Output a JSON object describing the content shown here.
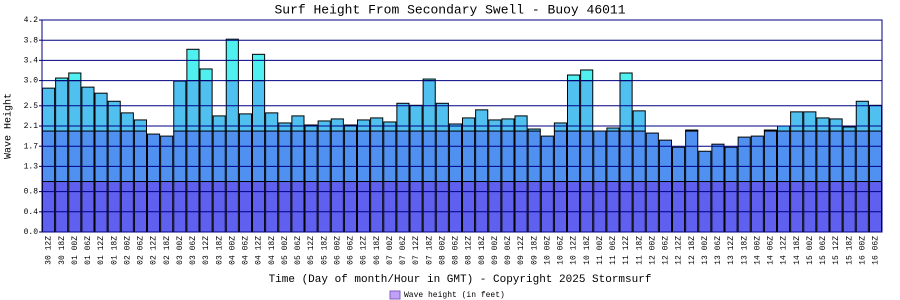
{
  "chart_data": {
    "type": "bar",
    "title": "Surf Height From Secondary Swell - Buoy 46011",
    "y_label": "Wave Height",
    "x_label": "Time (Day of month/Hour in GMT) - Copyright 2025 Stormsurf",
    "categories": [
      "30 12Z",
      "30 18Z",
      "01 00Z",
      "01 06Z",
      "01 12Z",
      "01 18Z",
      "02 00Z",
      "02 06Z",
      "02 12Z",
      "02 18Z",
      "03 00Z",
      "03 06Z",
      "03 12Z",
      "03 18Z",
      "04 00Z",
      "04 06Z",
      "04 12Z",
      "04 18Z",
      "05 00Z",
      "05 06Z",
      "05 12Z",
      "05 18Z",
      "06 00Z",
      "06 06Z",
      "06 12Z",
      "06 18Z",
      "07 00Z",
      "07 06Z",
      "07 12Z",
      "07 18Z",
      "08 00Z",
      "08 06Z",
      "08 12Z",
      "08 18Z",
      "09 00Z",
      "09 06Z",
      "09 12Z",
      "09 18Z",
      "10 00Z",
      "10 06Z",
      "10 12Z",
      "10 18Z",
      "11 00Z",
      "11 06Z",
      "11 12Z",
      "11 18Z",
      "12 00Z",
      "12 06Z",
      "12 12Z",
      "12 18Z",
      "13 00Z",
      "13 06Z",
      "13 12Z",
      "13 18Z",
      "14 00Z",
      "14 06Z",
      "14 12Z",
      "14 18Z",
      "15 00Z",
      "15 06Z",
      "15 12Z",
      "15 18Z",
      "16 00Z",
      "16 06Z"
    ],
    "series": [
      {
        "name": "Wave height (in feet)",
        "color": "#c0a0f8",
        "values": [
          2.85,
          3.05,
          3.15,
          2.87,
          2.75,
          2.59,
          2.36,
          2.22,
          1.94,
          1.9,
          2.99,
          3.62,
          3.23,
          2.3,
          3.82,
          2.34,
          3.52,
          2.36,
          2.16,
          2.3,
          2.12,
          2.2,
          2.24,
          2.12,
          2.22,
          2.26,
          2.18,
          2.55,
          2.51,
          3.03,
          2.55,
          2.14,
          2.26,
          2.42,
          2.22,
          2.24,
          2.3,
          2.04,
          1.9,
          2.16,
          3.11,
          3.21,
          2.0,
          2.06,
          3.15,
          2.4,
          1.96,
          1.82,
          1.68,
          2.02,
          1.6,
          1.74,
          1.68,
          1.88,
          1.9,
          2.02,
          2.1,
          2.38,
          2.38,
          2.26,
          2.24,
          2.08,
          2.59,
          2.51
        ]
      }
    ],
    "band_edges": [
      1,
      2,
      3
    ],
    "band_colors": [
      "#6060f0",
      "#5090f0",
      "#50c0f0",
      "#50f0f0"
    ],
    "ylim": [
      0,
      4.2
    ],
    "yticks": [
      {
        "value": 0,
        "label": "0.0"
      },
      0.4,
      0.8,
      1.3,
      1.7,
      2.1,
      2.5,
      {
        "value": 3,
        "label": "3.0"
      },
      3.4,
      3.8,
      4.2
    ],
    "grid": true
  }
}
